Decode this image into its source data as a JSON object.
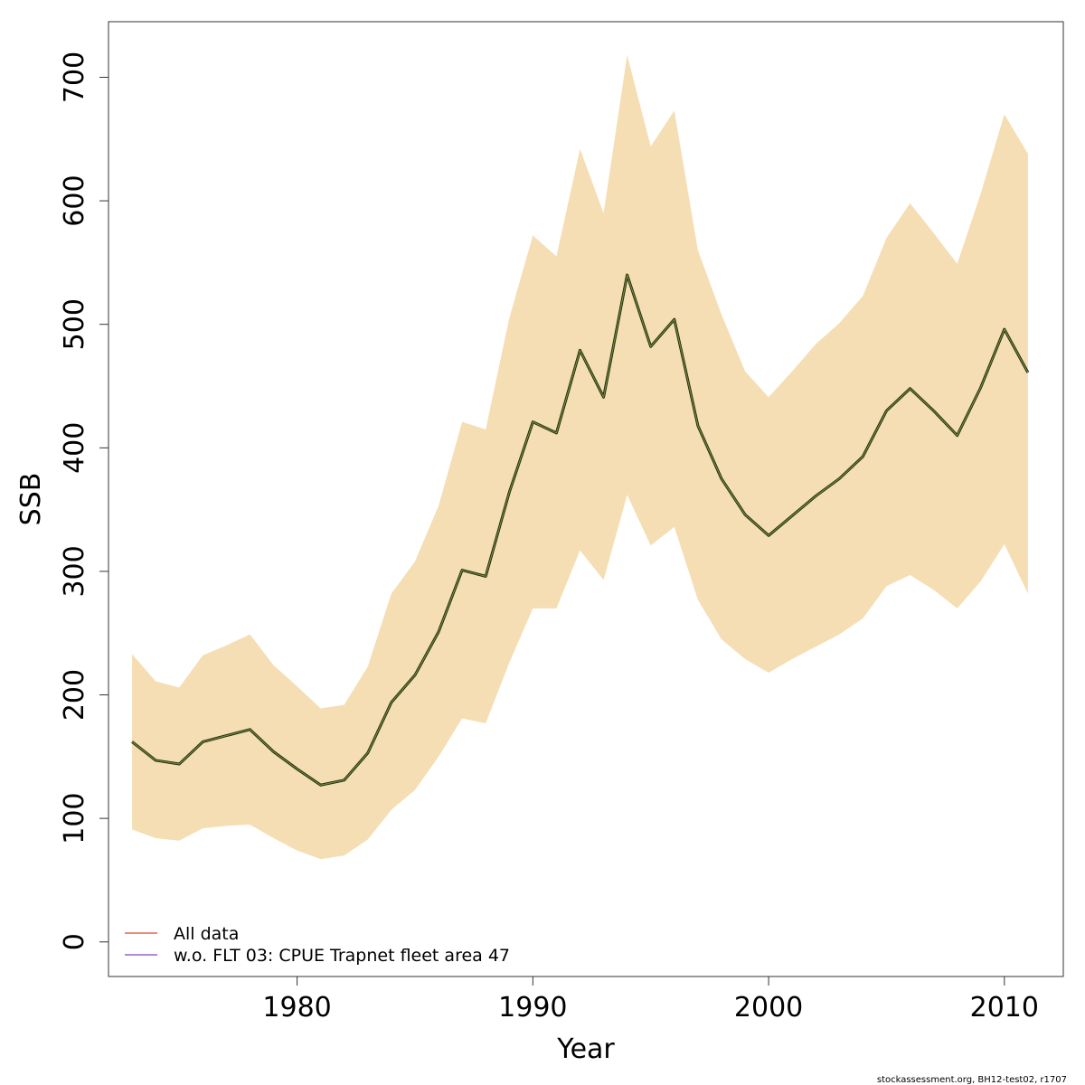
{
  "chart_data": {
    "type": "line",
    "xlabel": "Year",
    "ylabel": "SSB",
    "xlim": [
      1972,
      2012.5
    ],
    "ylim": [
      -28,
      745
    ],
    "x_ticks": [
      1980,
      1990,
      2000,
      2010
    ],
    "y_ticks": [
      0,
      100,
      200,
      300,
      400,
      500,
      600,
      700
    ],
    "x_tick_labels": [
      "1980",
      "1990",
      "2000",
      "2010"
    ],
    "y_tick_labels": [
      "0",
      "100",
      "200",
      "300",
      "400",
      "500",
      "600",
      "700"
    ],
    "grid": false,
    "legend_position": "bottom-left",
    "x": [
      1973,
      1974,
      1975,
      1976,
      1977,
      1978,
      1979,
      1980,
      1981,
      1982,
      1983,
      1984,
      1985,
      1986,
      1987,
      1988,
      1989,
      1990,
      1991,
      1992,
      1993,
      1994,
      1995,
      1996,
      1997,
      1998,
      1999,
      2000,
      2001,
      2002,
      2003,
      2004,
      2005,
      2006,
      2007,
      2008,
      2009,
      2010,
      2011
    ],
    "band": {
      "color": "#F5DEB3",
      "upper": [
        233,
        211,
        206,
        232,
        240,
        249,
        224,
        207,
        189,
        192,
        223,
        282,
        308,
        353,
        421,
        415,
        505,
        572,
        555,
        642,
        590,
        718,
        644,
        673,
        560,
        508,
        462,
        441,
        462,
        484,
        501,
        523,
        570,
        598,
        574,
        549,
        606,
        670,
        638
      ],
      "lower": [
        91,
        84,
        82,
        92,
        94,
        95,
        84,
        74,
        67,
        70,
        83,
        107,
        123,
        150,
        181,
        177,
        226,
        270,
        270,
        317,
        293,
        362,
        321,
        336,
        277,
        245,
        229,
        218,
        229,
        239,
        249,
        262,
        288,
        297,
        285,
        270,
        292,
        322,
        282
      ]
    },
    "series": [
      {
        "name": "All data",
        "color": "#F08878",
        "values": [
          162,
          147,
          144,
          162,
          167,
          172,
          154,
          140,
          127,
          131,
          153,
          194,
          216,
          251,
          301,
          296,
          364,
          421,
          412,
          479,
          441,
          540,
          482,
          504,
          418,
          375,
          346,
          329,
          345,
          361,
          375,
          393,
          430,
          448,
          430,
          410,
          449,
          496,
          461
        ]
      },
      {
        "name": "w.o. FLT 03: CPUE Trapnet fleet area 47",
        "color": "#B48AD0",
        "values": [
          162,
          147,
          144,
          162,
          167,
          172,
          154,
          140,
          127,
          131,
          153,
          194,
          216,
          251,
          301,
          296,
          364,
          421,
          412,
          479,
          441,
          540,
          482,
          504,
          418,
          375,
          346,
          329,
          345,
          361,
          375,
          393,
          430,
          448,
          430,
          410,
          449,
          496,
          461
        ]
      }
    ],
    "main_line_color": "#1a2a10",
    "main_line_highlight": "#6b8a2e"
  },
  "credit": "stockassessment.org, BH12-test02, r1707"
}
